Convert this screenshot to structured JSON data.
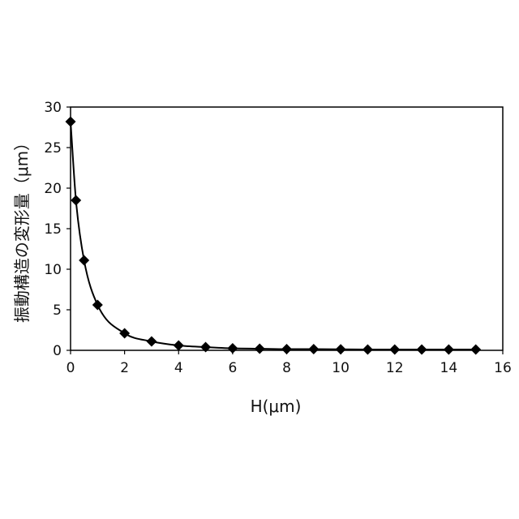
{
  "chart_data": {
    "type": "line",
    "xlabel": "H(μm)",
    "ylabel": "振動構造の変形量（μm）",
    "xlim": [
      0,
      16
    ],
    "ylim": [
      0,
      30
    ],
    "x_ticks": [
      "0",
      "2",
      "4",
      "6",
      "8",
      "10",
      "12",
      "14",
      "16"
    ],
    "y_ticks": [
      "0",
      "5",
      "10",
      "15",
      "20",
      "25",
      "30"
    ],
    "grid": false,
    "legend": "none",
    "series": [
      {
        "marker": "diamond",
        "color": "#000000",
        "x": [
          0,
          0.2,
          0.5,
          1,
          2,
          3,
          4,
          5,
          6,
          7,
          8,
          9,
          10,
          11,
          12,
          13,
          14,
          15
        ],
        "y": [
          28.2,
          18.5,
          11.1,
          5.6,
          2.1,
          1.1,
          0.6,
          0.4,
          0.25,
          0.2,
          0.15,
          0.15,
          0.12,
          0.1,
          0.1,
          0.1,
          0.1,
          0.1
        ]
      }
    ]
  }
}
